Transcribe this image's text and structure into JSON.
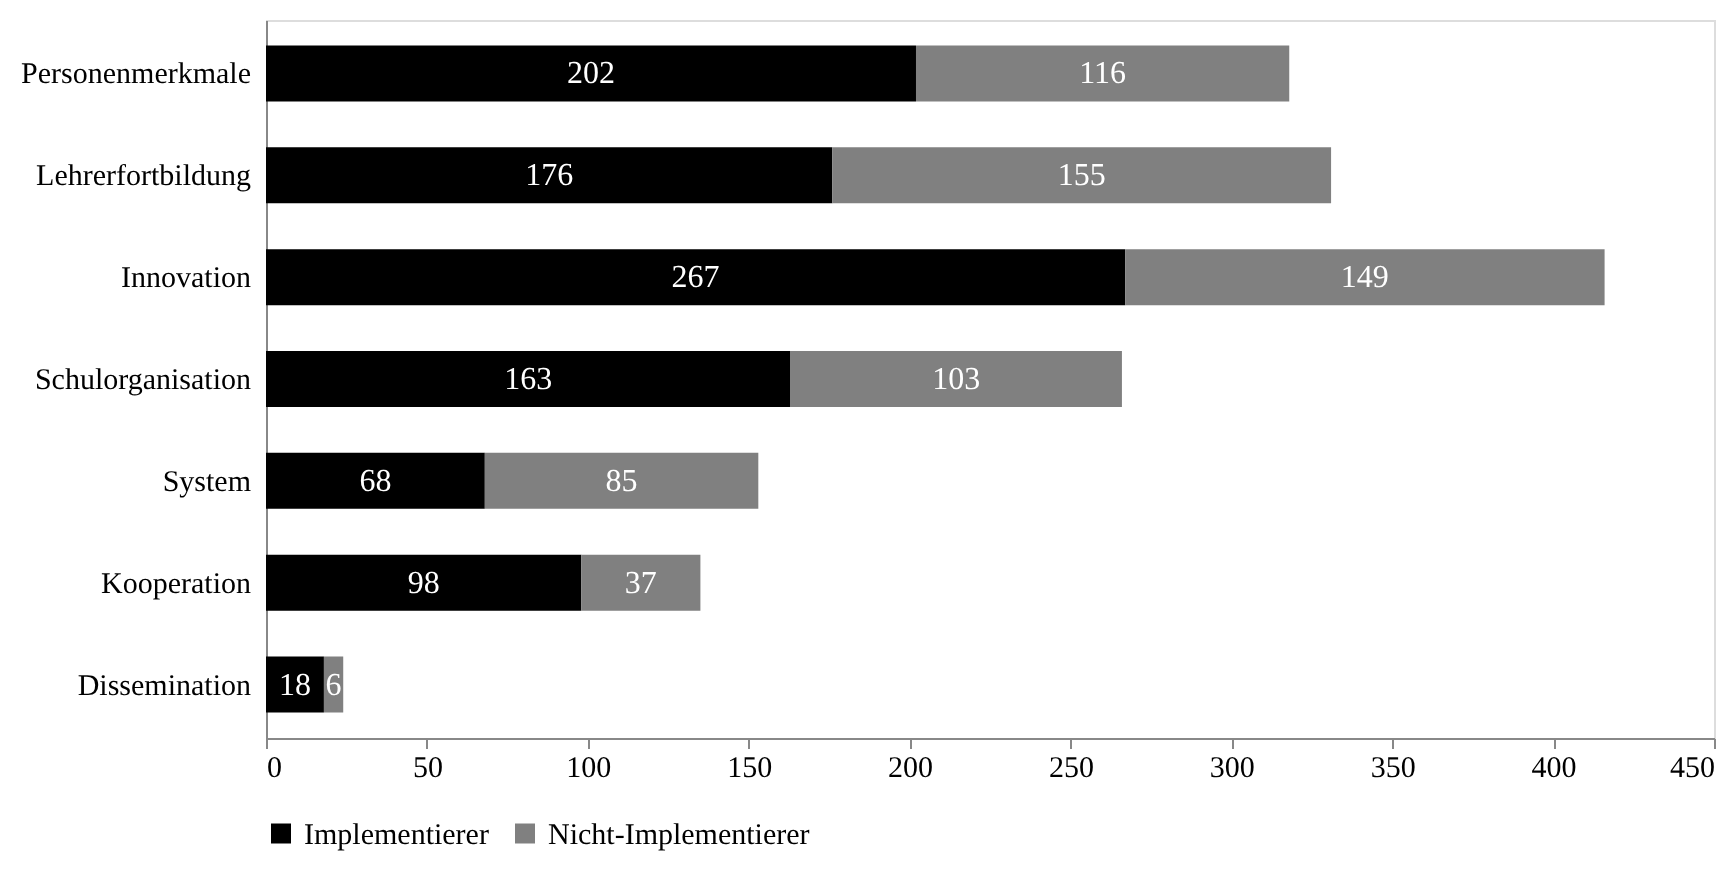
{
  "chart_data": {
    "type": "bar",
    "orientation": "horizontal",
    "stacked": true,
    "categories": [
      "Personenmerkmale",
      "Lehrerfortbildung",
      "Innovation",
      "Schulorganisation",
      "System",
      "Kooperation",
      "Dissemination"
    ],
    "series": [
      {
        "name": "Implementierer",
        "color": "#000000",
        "values": [
          202,
          176,
          267,
          163,
          68,
          98,
          18
        ]
      },
      {
        "name": "Nicht-Implementierer",
        "color": "#808080",
        "values": [
          116,
          155,
          149,
          103,
          85,
          37,
          6
        ]
      }
    ],
    "xlim": [
      0,
      450
    ],
    "xticks": [
      0,
      50,
      100,
      150,
      200,
      250,
      300,
      350,
      400,
      450
    ],
    "grid": false,
    "legend": "bottom",
    "data_labels": true
  }
}
